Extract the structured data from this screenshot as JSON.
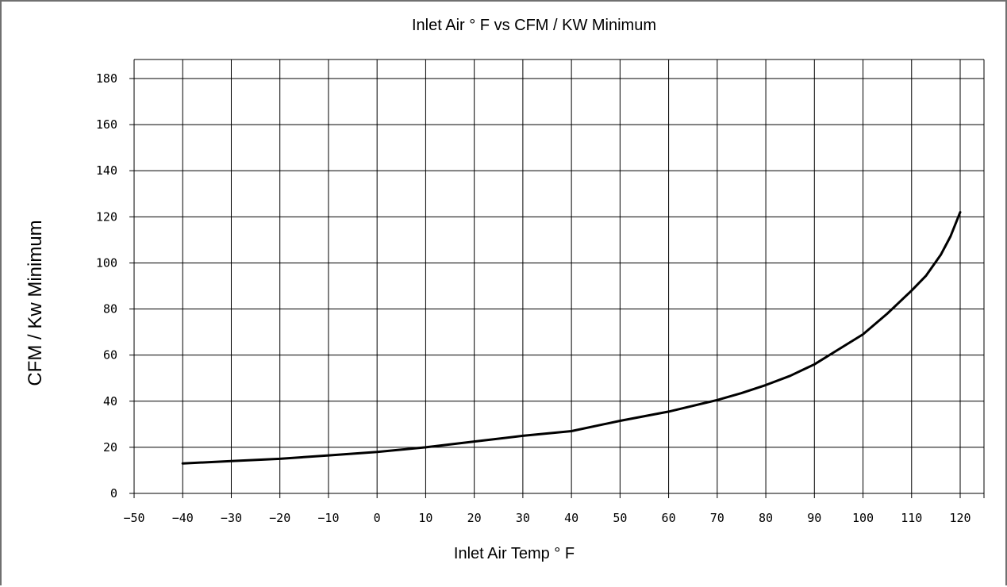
{
  "chart_data": {
    "type": "line",
    "title": "Inlet Air ° F vs CFM / KW Minimum",
    "xlabel": "Inlet Air Temp ° F",
    "ylabel": "CFM / Kw Minimum",
    "xlim": [
      -50,
      120
    ],
    "ylim": [
      0,
      180
    ],
    "x_ticks": [
      -50,
      -40,
      -30,
      -20,
      -10,
      0,
      10,
      20,
      30,
      40,
      50,
      60,
      70,
      80,
      90,
      100,
      110,
      120
    ],
    "y_ticks": [
      0,
      20,
      40,
      60,
      80,
      100,
      120,
      140,
      160,
      180
    ],
    "x_tick_labels": [
      "−50",
      "−40",
      "−30",
      "−20",
      "−10",
      "0",
      "10",
      "20",
      "30",
      "40",
      "50",
      "60",
      "70",
      "80",
      "90",
      "100",
      "110",
      "120"
    ],
    "y_tick_labels": [
      "0",
      "20",
      "40",
      "60",
      "80",
      "100",
      "120",
      "140",
      "160",
      "180"
    ],
    "grid": true,
    "series": [
      {
        "x": [
          -40,
          -30,
          -20,
          -10,
          0,
          10,
          20,
          30,
          40,
          50,
          60,
          70,
          75,
          80,
          85,
          90,
          95,
          100,
          105,
          110,
          113,
          116,
          118,
          120
        ],
        "y": [
          13,
          14,
          15,
          16.5,
          18,
          20,
          22.5,
          25,
          27,
          31.5,
          35.5,
          40.5,
          43.5,
          47,
          51,
          56,
          62.5,
          69,
          78,
          88,
          94.5,
          103.5,
          111.5,
          122
        ]
      }
    ]
  }
}
